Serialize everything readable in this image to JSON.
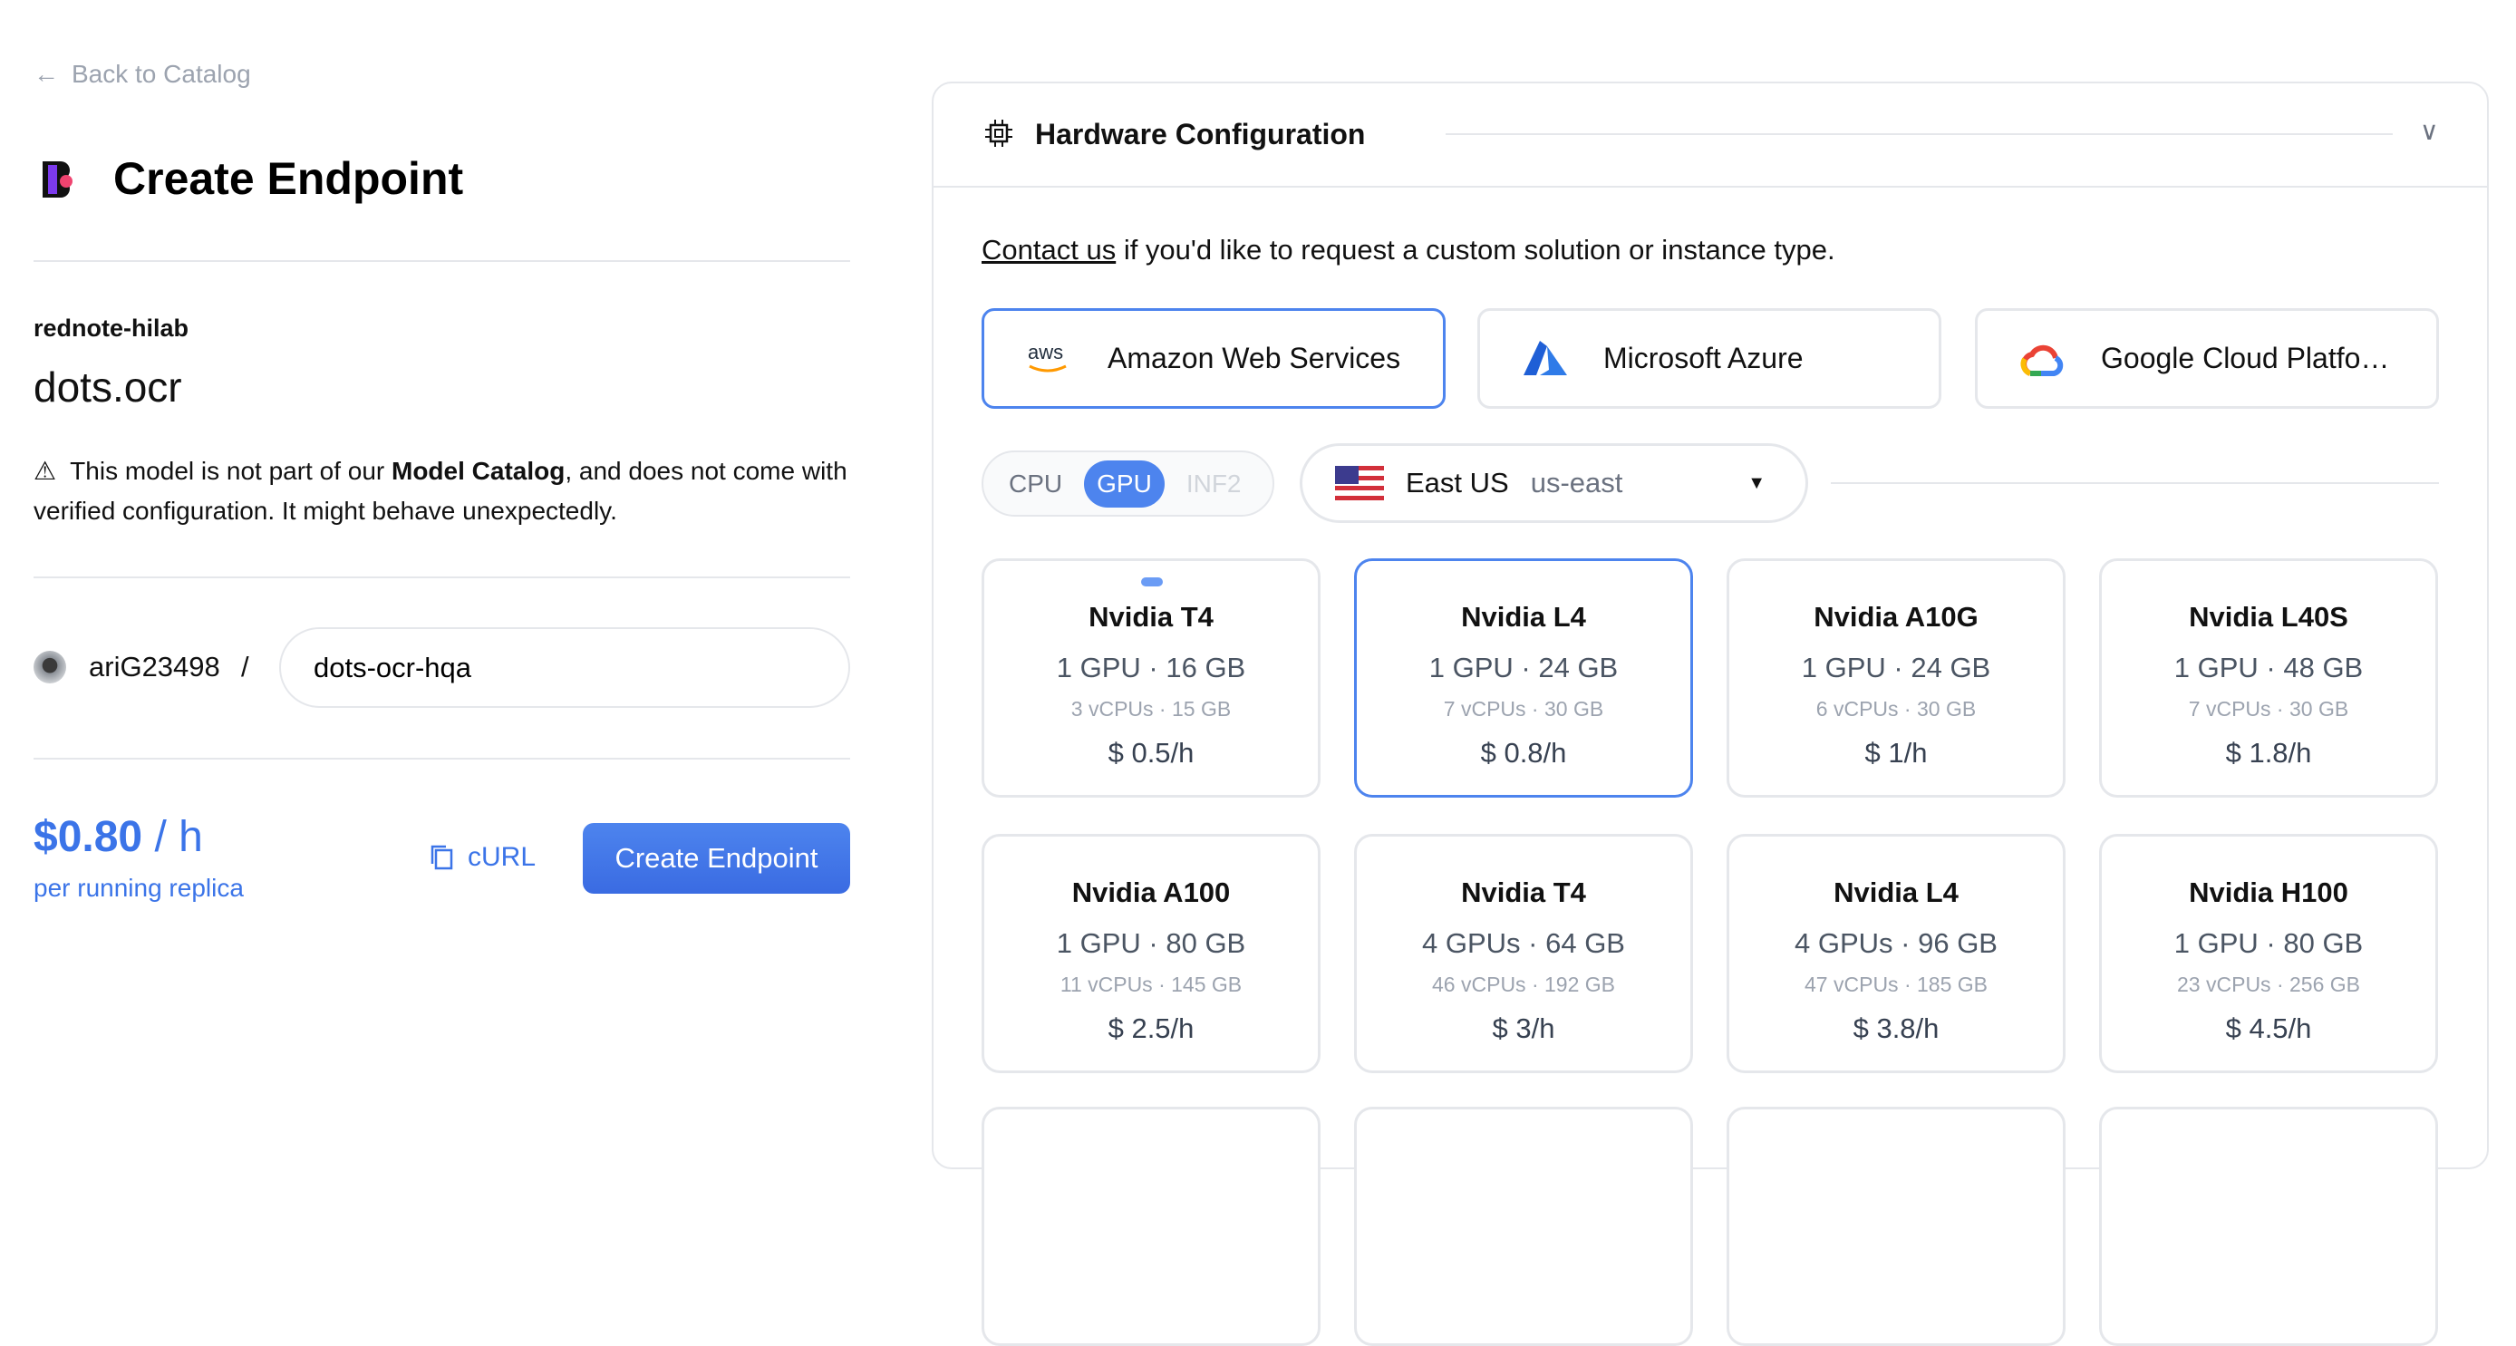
{
  "back_link": "Back to Catalog",
  "page_title": "Create Endpoint",
  "model": {
    "org": "rednote-hilab",
    "name": "dots.ocr"
  },
  "warning": {
    "pre": "This model is not part of our ",
    "bold": "Model Catalog",
    "post": ", and does not come with verified configuration. It might behave unexpectedly."
  },
  "owner": {
    "username": "ariG23498",
    "separator": "/",
    "endpoint_name": "dots-ocr-hqa"
  },
  "pricing": {
    "amount": "$0.80",
    "unit": " / h",
    "note": "per running replica"
  },
  "actions": {
    "curl": "cURL",
    "create": "Create Endpoint"
  },
  "hardware": {
    "title": "Hardware Configuration",
    "contact_link": "Contact us",
    "contact_text": " if you'd like to request a custom solution or instance type.",
    "providers": [
      {
        "label": "Amazon Web Services",
        "logo": "aws",
        "selected": true
      },
      {
        "label": "Microsoft Azure",
        "logo": "azure",
        "selected": false
      },
      {
        "label": "Google Cloud Platfo…",
        "logo": "gcp",
        "selected": false
      }
    ],
    "accelerators": [
      {
        "label": "CPU",
        "state": "off"
      },
      {
        "label": "GPU",
        "state": "on"
      },
      {
        "label": "INF2",
        "state": "disabled"
      }
    ],
    "region": {
      "name": "East US",
      "code": "us-east",
      "flag": "us-flag"
    },
    "instances": [
      {
        "name": "Nvidia T4",
        "spec": "1 GPU · 16 GB",
        "cpu": "3 vCPUs · 15 GB",
        "price": "$ 0.5/h"
      },
      {
        "name": "Nvidia L4",
        "spec": "1 GPU · 24 GB",
        "cpu": "7 vCPUs · 30 GB",
        "price": "$ 0.8/h",
        "selected": true
      },
      {
        "name": "Nvidia A10G",
        "spec": "1 GPU · 24 GB",
        "cpu": "6 vCPUs · 30 GB",
        "price": "$ 1/h"
      },
      {
        "name": "Nvidia L40S",
        "spec": "1 GPU · 48 GB",
        "cpu": "7 vCPUs · 30 GB",
        "price": "$ 1.8/h"
      },
      {
        "name": "Nvidia A100",
        "spec": "1 GPU · 80 GB",
        "cpu": "11 vCPUs · 145 GB",
        "price": "$ 2.5/h"
      },
      {
        "name": "Nvidia T4",
        "spec": "4 GPUs · 64 GB",
        "cpu": "46 vCPUs · 192 GB",
        "price": "$ 3/h"
      },
      {
        "name": "Nvidia L4",
        "spec": "4 GPUs · 96 GB",
        "cpu": "47 vCPUs · 185 GB",
        "price": "$ 3.8/h"
      },
      {
        "name": "Nvidia H100",
        "spec": "1 GPU · 80 GB",
        "cpu": "23 vCPUs · 256 GB",
        "price": "$ 4.5/h"
      }
    ]
  },
  "colors": {
    "accent": "#3b74e8",
    "border": "#e5e7eb"
  }
}
